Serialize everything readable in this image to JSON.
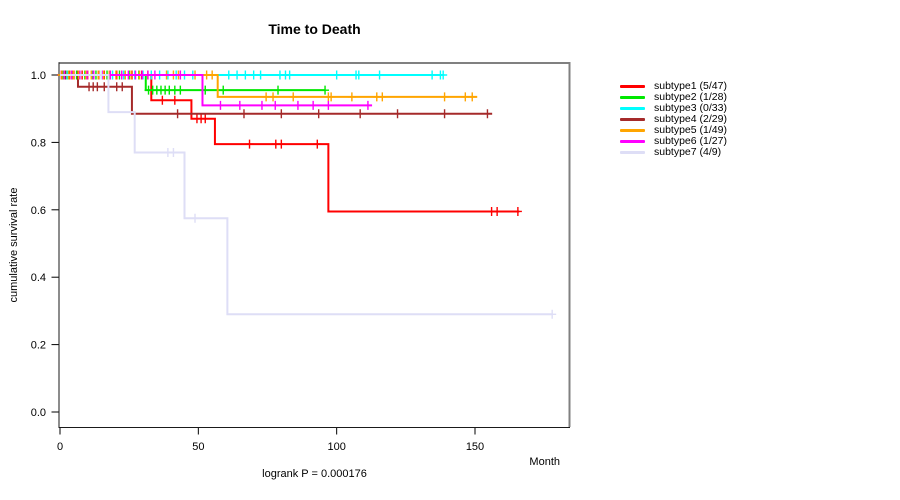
{
  "title": "Time to Death",
  "chart_data": {
    "type": "line",
    "variant": "kaplan-meier-step",
    "title": "Time to Death",
    "xlabel": "Month",
    "ylabel": "cumulative survival rate",
    "annotation": "logrank P = 0.000176",
    "x_ticks": [
      0,
      50,
      100,
      150
    ],
    "y_ticks": [
      "0.0",
      "0.2",
      "0.4",
      "0.6",
      "0.8",
      "1.0"
    ],
    "xlim": [
      0,
      185
    ],
    "ylim": [
      0,
      1.04
    ],
    "grid": false,
    "legend_position": "right",
    "frame_color": "#808080",
    "axis_color": "#1a1a1a",
    "series": [
      {
        "name": "subtype1",
        "label": "subtype1 (5/47)",
        "color": "#FF0000",
        "steps": [
          [
            0,
            1.0
          ],
          [
            33,
            0.925
          ],
          [
            47.5,
            0.87
          ],
          [
            56,
            0.795
          ],
          [
            97,
            0.595
          ]
        ],
        "end_month": 166,
        "censor_months": [
          0.5,
          2,
          3.5,
          5,
          6.5,
          8,
          10,
          12,
          14,
          16,
          18,
          20.5,
          23,
          26,
          29.5,
          37,
          41.5,
          49.5,
          51,
          52.5,
          68.5,
          78,
          80,
          93,
          156,
          158,
          165.5
        ]
      },
      {
        "name": "subtype2",
        "label": "subtype2 (1/28)",
        "color": "#00E800",
        "steps": [
          [
            0,
            1.0
          ],
          [
            31,
            0.955
          ]
        ],
        "end_month": 95.8,
        "censor_months": [
          1,
          3,
          6,
          9,
          13,
          17,
          21.5,
          25,
          28.5,
          32,
          33.5,
          35,
          36.5,
          38,
          39.5,
          41.5,
          43.5,
          52.5,
          59,
          78.8,
          95.8
        ]
      },
      {
        "name": "subtype3",
        "label": "subtype3 (0/33)",
        "color": "#00FFFF",
        "steps": [
          [
            0,
            1.0
          ]
        ],
        "end_month": 138.5,
        "censor_months": [
          2.5,
          4.5,
          7,
          9.5,
          11.5,
          15,
          19,
          23,
          27,
          30,
          33,
          36,
          39,
          42,
          45,
          48,
          61,
          64,
          67,
          70,
          72.5,
          79.5,
          81.5,
          83,
          100,
          107,
          108,
          115.5,
          134.5,
          137.5,
          138.5
        ]
      },
      {
        "name": "subtype4",
        "label": "subtype4 (2/29)",
        "color": "#A52A2A",
        "steps": [
          [
            0,
            1.0
          ],
          [
            6.5,
            0.965
          ],
          [
            26,
            0.885
          ]
        ],
        "end_month": 156.2,
        "censor_months": [
          2,
          4.5,
          10.5,
          12,
          13.5,
          16,
          20.5,
          22.5,
          42.5,
          66.5,
          80,
          93.5,
          108.5,
          122,
          139,
          154.5
        ]
      },
      {
        "name": "subtype5",
        "label": "subtype5 (1/49)",
        "color": "#FFA500",
        "steps": [
          [
            0,
            1.0
          ],
          [
            57,
            0.935
          ]
        ],
        "end_month": 150.8,
        "censor_months": [
          0.7,
          3.2,
          4.8,
          6.8,
          9.3,
          11.3,
          13.8,
          15.8,
          17.8,
          20.2,
          23.6,
          25.7,
          28.7,
          31.7,
          38.5,
          41,
          42.8,
          48.8,
          53,
          55,
          74.5,
          77,
          84.3,
          97,
          98,
          105.5,
          114.5,
          116.5,
          139,
          146.5,
          149
        ]
      },
      {
        "name": "subtype6",
        "label": "subtype6 (1/27)",
        "color": "#FF00FF",
        "steps": [
          [
            0,
            1.0
          ],
          [
            51.5,
            0.91
          ]
        ],
        "end_month": 112.8,
        "censor_months": [
          1.5,
          4.2,
          7.2,
          9.8,
          12.2,
          15.3,
          18.2,
          22.3,
          24.7,
          27.3,
          29.7,
          31.8,
          34.3,
          43.5,
          58,
          65,
          73,
          77.8,
          86,
          91.5,
          97,
          111.3
        ]
      },
      {
        "name": "subtype7",
        "label": "subtype7 (4/9)",
        "color": "#DEDEF6",
        "steps": [
          [
            0,
            1.0
          ],
          [
            17.5,
            0.89
          ],
          [
            27,
            0.77
          ],
          [
            45,
            0.575
          ],
          [
            60.5,
            0.29
          ]
        ],
        "end_month": 177.9,
        "censor_months": [
          15,
          39,
          41,
          48.8,
          177.9
        ]
      }
    ]
  }
}
